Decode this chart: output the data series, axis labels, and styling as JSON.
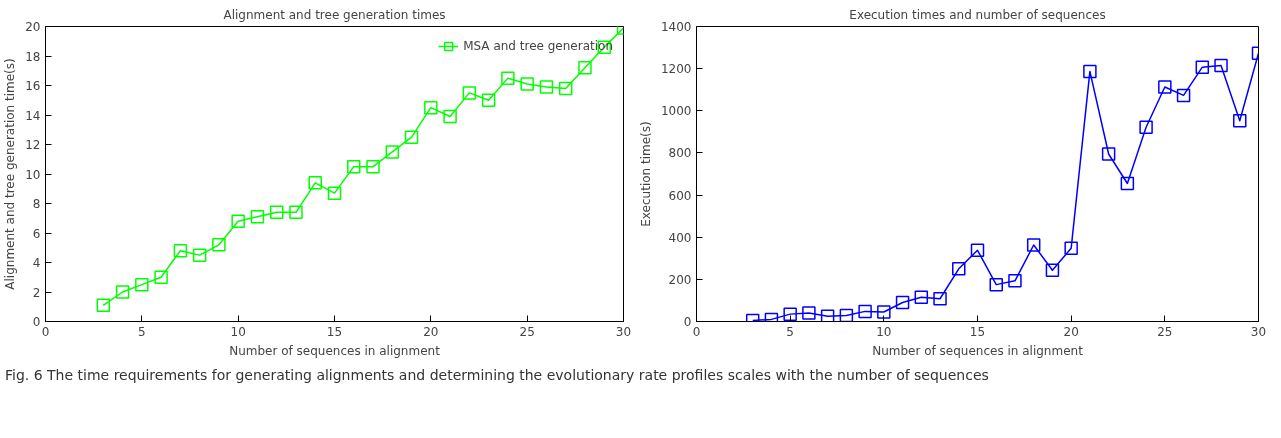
{
  "chart_data": [
    {
      "type": "line",
      "title": "Alignment and tree generation times",
      "xlabel": "Number of sequences in alignment",
      "ylabel": "Alignment and tree generation time(s)",
      "x": [
        3,
        4,
        5,
        6,
        7,
        8,
        9,
        10,
        11,
        12,
        13,
        14,
        15,
        16,
        17,
        18,
        19,
        20,
        21,
        22,
        23,
        24,
        25,
        26,
        27,
        28,
        29,
        30
      ],
      "series": [
        {
          "name": "MSA and tree generation",
          "color": "#00ff00",
          "values": [
            1.1,
            2.0,
            2.5,
            3.0,
            4.8,
            4.5,
            5.2,
            6.8,
            7.1,
            7.4,
            7.4,
            9.4,
            8.7,
            10.5,
            10.5,
            11.5,
            12.5,
            14.5,
            13.9,
            15.5,
            15.0,
            16.5,
            16.1,
            15.9,
            15.8,
            17.2,
            18.6,
            19.9
          ]
        }
      ],
      "xlim": [
        0,
        30
      ],
      "xticks": [
        0,
        5,
        10,
        15,
        20,
        25,
        30
      ],
      "ylim": [
        0,
        20
      ],
      "yticks": [
        0,
        2,
        4,
        6,
        8,
        10,
        12,
        14,
        16,
        18,
        20
      ],
      "marker": "square",
      "legend": "top right",
      "grid": false,
      "annotations": [
        "Fig. 6 The time requirements for generating alignments and determining the evolutionary rate profiles scales with the number of sequences"
      ]
    },
    {
      "type": "line",
      "title": "Execution times and number of sequences",
      "xlabel": "Number of sequences in alignment",
      "ylabel": "Execution time(s)",
      "x": [
        3,
        4,
        5,
        6,
        7,
        8,
        9,
        10,
        11,
        12,
        13,
        14,
        15,
        16,
        17,
        18,
        19,
        20,
        21,
        22,
        23,
        24,
        25,
        26,
        27,
        28,
        29,
        30
      ],
      "series": [
        {
          "color": "#0000ff",
          "values": [
            5,
            10,
            35,
            40,
            25,
            28,
            48,
            45,
            90,
            115,
            108,
            250,
            338,
            175,
            193,
            363,
            243,
            348,
            1187,
            795,
            655,
            922,
            1113,
            1073,
            1207,
            1215,
            953,
            1273
          ]
        }
      ],
      "xlim": [
        0,
        30
      ],
      "xticks": [
        0,
        5,
        10,
        15,
        20,
        25,
        30
      ],
      "ylim": [
        0,
        1400
      ],
      "yticks": [
        0,
        200,
        400,
        600,
        800,
        1000,
        1200,
        1400
      ],
      "marker": "square",
      "grid": false
    }
  ]
}
